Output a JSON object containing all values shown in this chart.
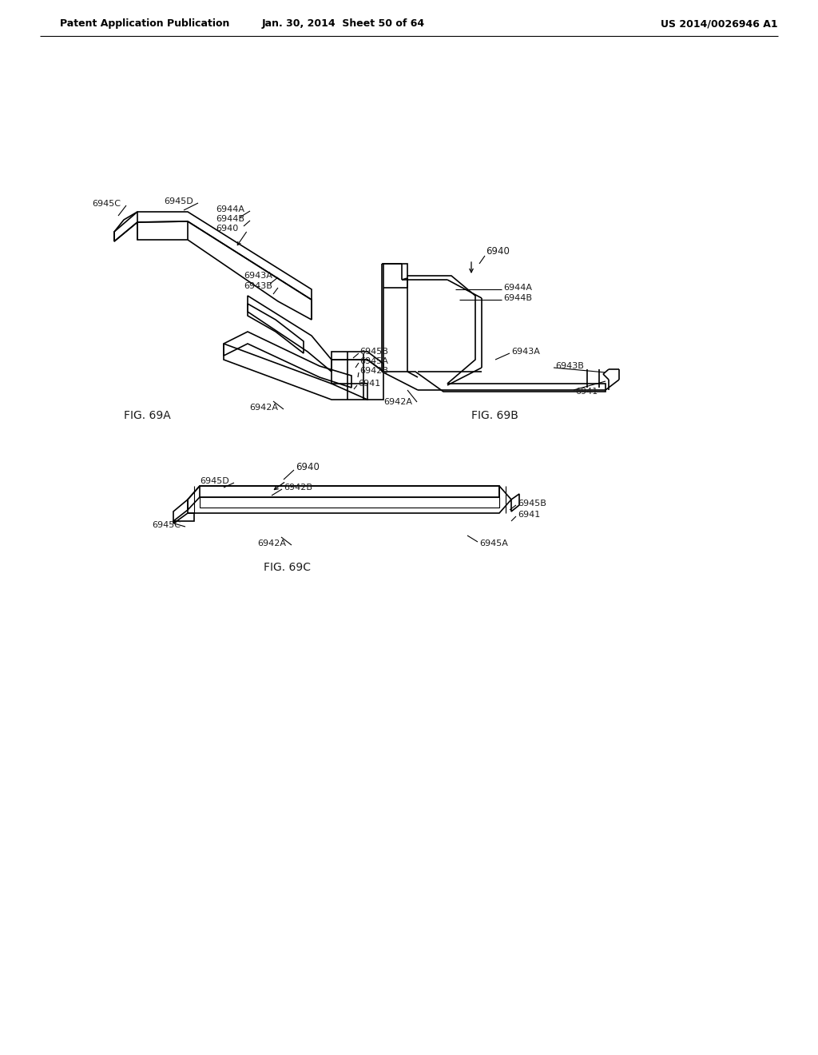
{
  "header_left": "Patent Application Publication",
  "header_mid": "Jan. 30, 2014  Sheet 50 of 64",
  "header_right": "US 2014/0026946 A1",
  "background_color": "#ffffff",
  "line_color": "#000000",
  "label_color": "#1a1a1a",
  "fig69a_label": "FIG. 69A",
  "fig69b_label": "FIG. 69B",
  "fig69c_label": "FIG. 69C"
}
